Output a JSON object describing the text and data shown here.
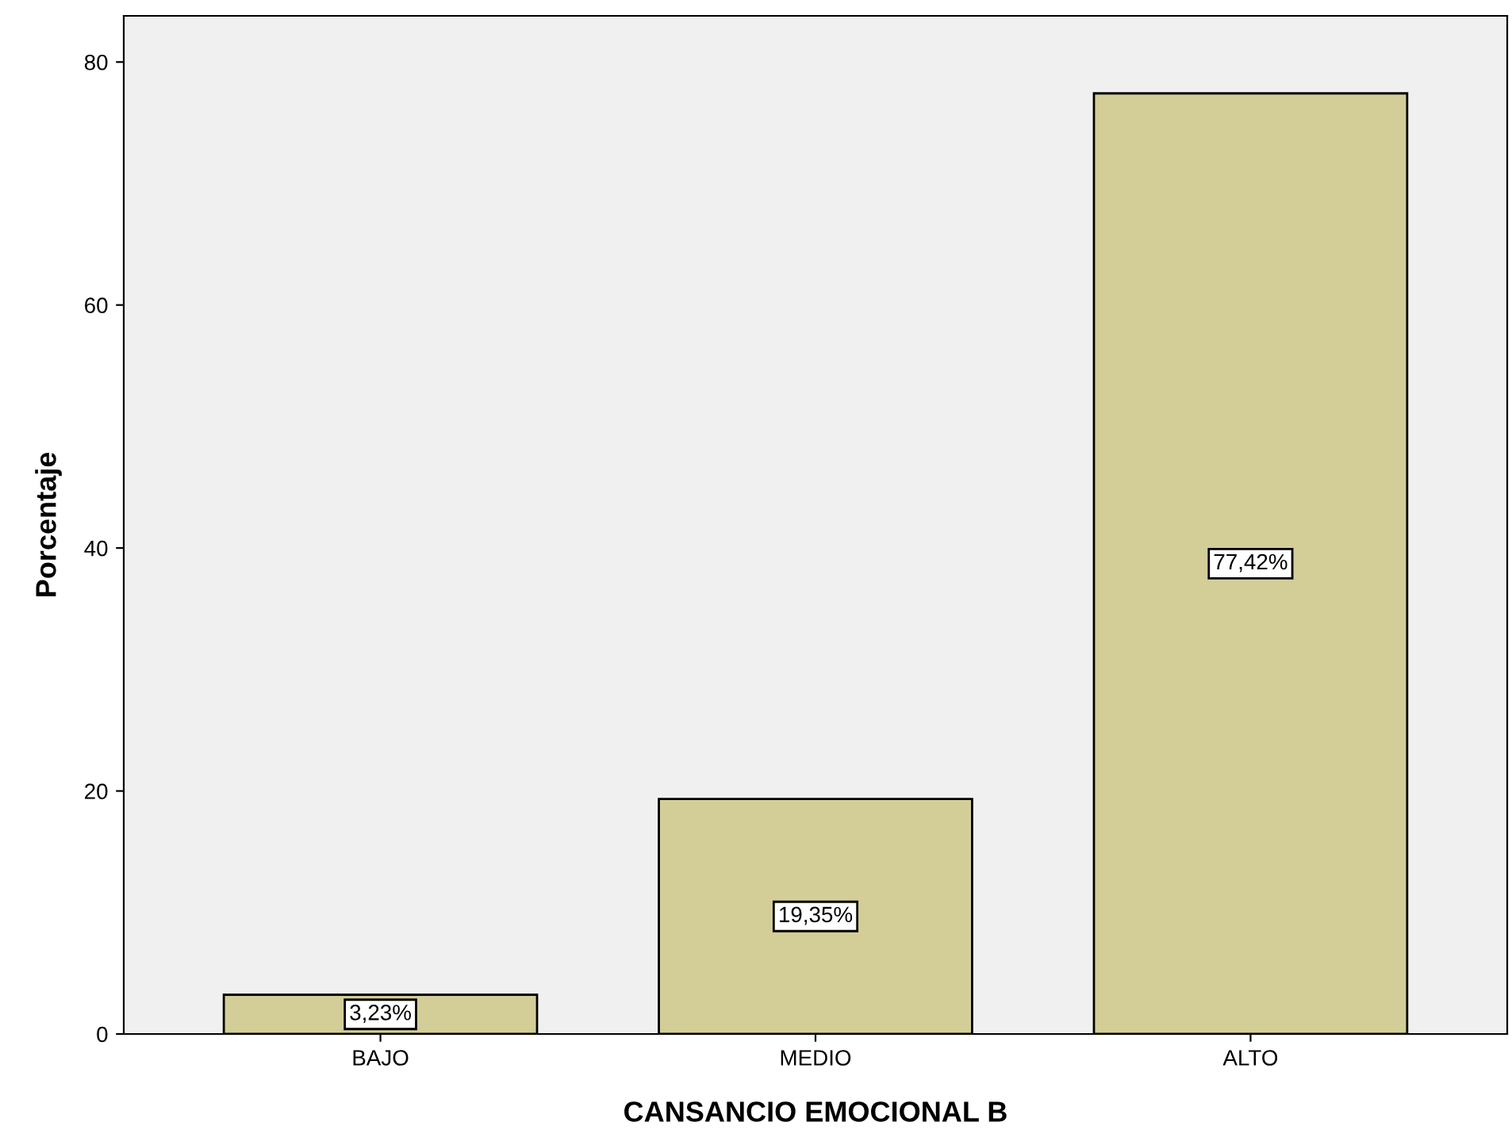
{
  "chart_data": {
    "type": "bar",
    "xlabel": "CANSANCIO EMOCIONAL B",
    "ylabel": "Porcentaje",
    "categories": [
      "BAJO",
      "MEDIO",
      "ALTO"
    ],
    "values": [
      3.23,
      19.35,
      77.42
    ],
    "value_labels": [
      "3,23%",
      "19,35%",
      "77,42%"
    ],
    "color": "#d3ce97",
    "ylim": [
      0,
      83.8
    ],
    "yticks": [
      0,
      20,
      40,
      60,
      80
    ],
    "grid": false,
    "legend": false
  }
}
